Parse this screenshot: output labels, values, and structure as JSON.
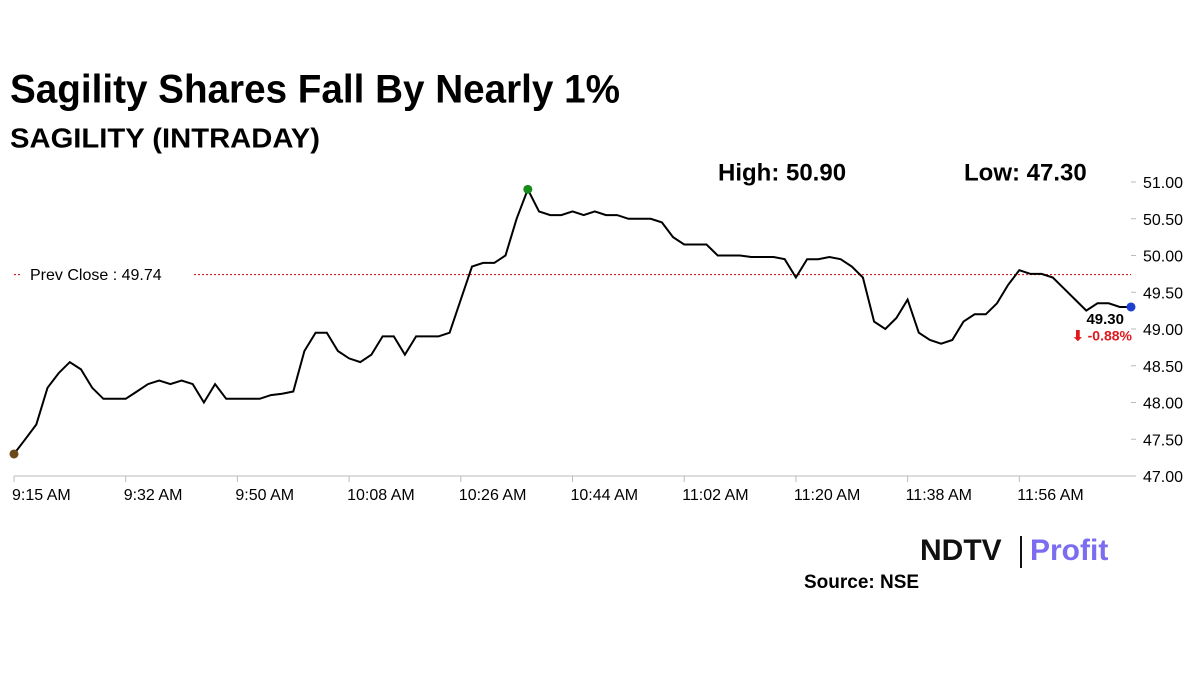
{
  "chart_data": {
    "type": "line",
    "title": "Sagility Shares Fall By Nearly 1%",
    "subtitle": "SAGILITY (INTRADAY)",
    "high_label": "High: 50.90",
    "low_label": "Low: 47.30",
    "prev_close": {
      "value": 49.74,
      "label": "Prev Close : 49.74"
    },
    "prev_close_color": "#cc0000",
    "last_label": "49.30",
    "change_label": "⬇ -0.88%",
    "change_color": "#e0191f",
    "high_color": "#1a8a1a",
    "low_color": "#6b4a1a",
    "last_color": "#1f3fd1",
    "source": "Source: NSE",
    "logo": {
      "left": "NDTV",
      "right": "Profit"
    },
    "categories": [
      "9:15 AM",
      null,
      null,
      null,
      null,
      null,
      null,
      null,
      null,
      null,
      "9:32 AM",
      null,
      null,
      null,
      null,
      null,
      null,
      null,
      null,
      null,
      "9:50 AM",
      null,
      null,
      null,
      null,
      null,
      null,
      null,
      null,
      null,
      "10:08 AM",
      null,
      null,
      null,
      null,
      null,
      null,
      null,
      null,
      null,
      "10:26 AM",
      null,
      null,
      null,
      null,
      null,
      null,
      null,
      null,
      null,
      "10:44 AM",
      null,
      null,
      null,
      null,
      null,
      null,
      null,
      null,
      null,
      "11:02 AM",
      null,
      null,
      null,
      null,
      null,
      null,
      null,
      null,
      null,
      "11:20 AM",
      null,
      null,
      null,
      null,
      null,
      null,
      null,
      null,
      null,
      "11:38 AM",
      null,
      null,
      null,
      null,
      null,
      null,
      null,
      null,
      null,
      "11:56 AM",
      null,
      null,
      null,
      null,
      null,
      null,
      null,
      null,
      null,
      null
    ],
    "series": [
      {
        "name": "SAGILITY",
        "color": "#000000",
        "values": [
          47.3,
          47.5,
          47.7,
          48.2,
          48.4,
          48.55,
          48.45,
          48.2,
          48.05,
          48.05,
          48.05,
          48.15,
          48.25,
          48.3,
          48.25,
          48.3,
          48.25,
          48.0,
          48.25,
          48.05,
          48.05,
          48.05,
          48.05,
          48.1,
          48.12,
          48.15,
          48.7,
          48.95,
          48.95,
          48.7,
          48.6,
          48.55,
          48.65,
          48.9,
          48.9,
          48.65,
          48.9,
          48.9,
          48.9,
          48.95,
          49.4,
          49.85,
          49.9,
          49.9,
          50.0,
          50.5,
          50.9,
          50.6,
          50.55,
          50.55,
          50.6,
          50.55,
          50.6,
          50.55,
          50.55,
          50.5,
          50.5,
          50.5,
          50.45,
          50.25,
          50.15,
          50.15,
          50.15,
          50.0,
          50.0,
          50.0,
          49.98,
          49.98,
          49.98,
          49.95,
          49.7,
          49.95,
          49.95,
          49.98,
          49.95,
          49.85,
          49.7,
          49.1,
          49.0,
          49.15,
          49.4,
          48.95,
          48.85,
          48.8,
          48.85,
          49.1,
          49.2,
          49.2,
          49.35,
          49.6,
          49.8,
          49.75,
          49.75,
          49.7,
          49.55,
          49.4,
          49.25,
          49.35,
          49.35,
          49.3,
          49.3
        ]
      }
    ],
    "ylim": [
      47,
      51
    ],
    "yticks": [
      {
        "value": 47,
        "label": "47.00"
      },
      {
        "value": 47.5,
        "label": "47.50"
      },
      {
        "value": 48,
        "label": "48.00"
      },
      {
        "value": 48.5,
        "label": "48.50"
      },
      {
        "value": 49,
        "label": "49.00"
      },
      {
        "value": 49.5,
        "label": "49.50"
      },
      {
        "value": 50,
        "label": "50.00"
      },
      {
        "value": 50.5,
        "label": "50.50"
      },
      {
        "value": 51,
        "label": "51.00"
      }
    ]
  }
}
